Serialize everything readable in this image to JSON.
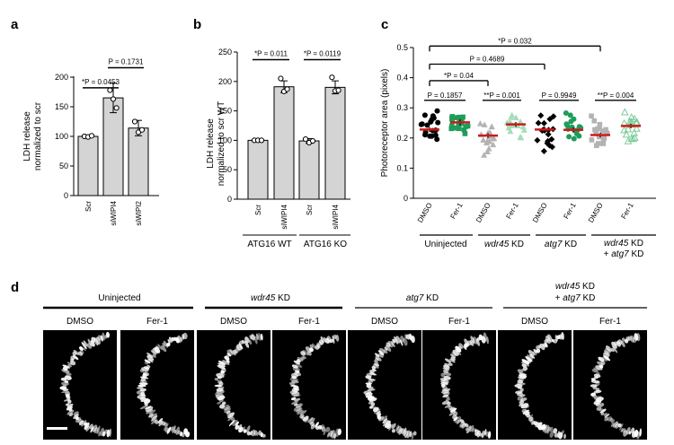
{
  "panels": {
    "a": "a",
    "b": "b",
    "c": "c",
    "d": "d"
  },
  "chart_data": [
    {
      "panel": "a",
      "type": "bar",
      "ylabel": "LDH release normalized to scr",
      "ylim": [
        0,
        200
      ],
      "yticks": [
        0,
        50,
        100,
        150,
        200
      ],
      "categories": [
        "Scr",
        "siWIPI4",
        "siWIPI2"
      ],
      "values": [
        100,
        165,
        114
      ],
      "errors": [
        1,
        25,
        13
      ],
      "points": [
        [
          100,
          99,
          101
        ],
        [
          178,
          163,
          148
        ],
        [
          125,
          107,
          111
        ]
      ],
      "annotations": [
        {
          "text": "*P = 0.0453",
          "from": 0,
          "to": 1,
          "y": 182
        },
        {
          "text": "P = 0.1731",
          "from": 1,
          "to": 2,
          "y": 216
        }
      ]
    },
    {
      "panel": "b",
      "type": "bar",
      "ylabel": "LDH release normalized to scr WT",
      "ylim": [
        0,
        250
      ],
      "yticks": [
        0,
        50,
        100,
        150,
        200,
        250
      ],
      "categories": [
        "Scr",
        "siWIPI4",
        "Scr",
        "siWIPI4"
      ],
      "groups": [
        "ATG16 WT",
        "ATG16 KO"
      ],
      "values": [
        100,
        191,
        99,
        190
      ],
      "errors": [
        1,
        10,
        4,
        11
      ],
      "points": [
        [
          100,
          100,
          100
        ],
        [
          205,
          183,
          187
        ],
        [
          102,
          96,
          99
        ],
        [
          207,
          184,
          185
        ]
      ],
      "annotations": [
        {
          "text": "*P = 0.011",
          "from": 0,
          "to": 1,
          "y": 237
        },
        {
          "text": "*P = 0.0119",
          "from": 2,
          "to": 3,
          "y": 237
        }
      ]
    },
    {
      "panel": "c",
      "type": "scatter",
      "ylabel": "Photoreceptor area (pixels)",
      "ylim": [
        0,
        0.5
      ],
      "yticks": [
        "0",
        "0.1",
        "0.2",
        "0.3",
        "0.4",
        "0.5"
      ],
      "categories": [
        "DMSO",
        "Fer-1",
        "DMSO",
        "Fer-1",
        "DMSO",
        "Fer-1",
        "DMSO",
        "Fer-1"
      ],
      "groups": [
        "Uninjected",
        "wdr45 KD",
        "atg7 KD",
        "wdr45 KD + atg7 KD"
      ],
      "means": [
        0.228,
        0.252,
        0.208,
        0.245,
        0.228,
        0.227,
        0.21,
        0.24
      ],
      "sem": [
        0.008,
        0.01,
        0.008,
        0.008,
        0.01,
        0.008,
        0.008,
        0.008
      ],
      "annotations": [
        {
          "text": "P = 0.1857",
          "from": 0,
          "to": 1,
          "y": 0.325
        },
        {
          "text": "**P = 0.001",
          "from": 2,
          "to": 3,
          "y": 0.325
        },
        {
          "text": "P = 0.9949",
          "from": 4,
          "to": 5,
          "y": 0.325
        },
        {
          "text": "**P = 0.004",
          "from": 6,
          "to": 7,
          "y": 0.325
        },
        {
          "text": "*P = 0.04",
          "from": 0,
          "to": 2,
          "y": 0.39
        },
        {
          "text": "P = 0.4689",
          "from": 0,
          "to": 4,
          "y": 0.445
        },
        {
          "text": "*P = 0.032",
          "from": 0,
          "to": 6,
          "y": 0.505
        }
      ]
    }
  ],
  "panel_d": {
    "groups": [
      "Uninjected",
      "wdr45 KD",
      "atg7 KD",
      "wdr45 KD + atg7 KD"
    ],
    "treatments": [
      "DMSO",
      "Fer-1",
      "DMSO",
      "Fer-1",
      "DMSO",
      "Fer-1",
      "DMSO",
      "Fer-1"
    ],
    "scale_bar": "scale-bar"
  }
}
